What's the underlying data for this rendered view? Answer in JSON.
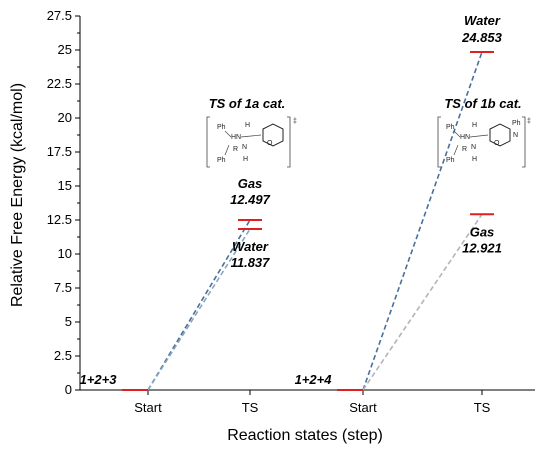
{
  "chart_data": {
    "type": "line",
    "xlabel": "Reaction states (step)",
    "ylabel": "Relative Free Energy (kcal/mol)",
    "ylim": [
      0,
      27.5
    ],
    "y_ticks": [
      "0",
      "2.5",
      "5",
      "7.5",
      "10",
      "12.5",
      "15",
      "17.5",
      "20",
      "22.5",
      "25",
      "27.5"
    ],
    "categories": [
      "Start",
      "TS",
      "Start",
      "TS"
    ],
    "pathways": [
      {
        "start_label": "1+2+3",
        "ts_title": "TS of 1a cat.",
        "start_value": 0,
        "series": [
          {
            "name": "Gas",
            "value_label": "12.497",
            "start": 0,
            "ts": 12.497,
            "color": "#4a6f9a",
            "dash": "dash"
          },
          {
            "name": "Water",
            "value_label": "11.837",
            "start": 0,
            "ts": 11.837,
            "color": "#8aa6c1",
            "dash": "dash"
          }
        ]
      },
      {
        "start_label": "1+2+4",
        "ts_title": "TS of 1b cat.",
        "start_value": 0,
        "series": [
          {
            "name": "Water",
            "value_label": "24.853",
            "start": 0,
            "ts": 24.853,
            "color": "#4a6f9a",
            "dash": "dash"
          },
          {
            "name": "Gas",
            "value_label": "12.921",
            "start": 0,
            "ts": 12.921,
            "color": "#b0b6bc",
            "dash": "dash"
          }
        ]
      }
    ],
    "level_color": "#e02020",
    "grid": false,
    "legend": "none"
  },
  "molecule": {
    "ph": "Ph",
    "hn": "HN",
    "h": "H",
    "n": "N",
    "o": "O",
    "r": "R",
    "dagger": "‡"
  }
}
